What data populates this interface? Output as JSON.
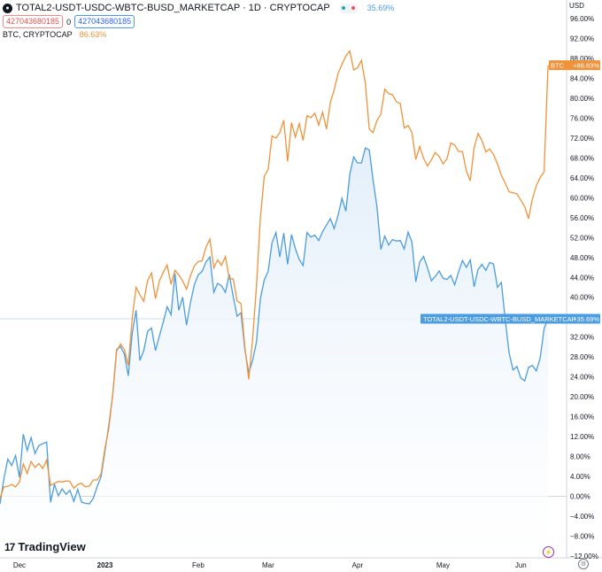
{
  "header": {
    "symbol_icon": "tradingview-symbol-icon",
    "title": "TOTAL2-USDT-USDC-WBTC-BUSD_MARKETCAP · 1D · CRYPTOCAP",
    "main_change": "35.69%",
    "input_left": "427043680185",
    "zero": "0",
    "input_right": "427043680185",
    "btc_label": "BTC, CRYPTOCAP",
    "btc_change": "86.63%"
  },
  "brand": {
    "icon": "17",
    "name": "TradingView"
  },
  "colors": {
    "total2": "#4b9ce0",
    "total2_fill": "#e3effa",
    "btc": "#f0923a",
    "grid_zero": "#c9ced8"
  },
  "chart_data": {
    "type": "line",
    "y_unit": "USD",
    "ylim": [
      -12,
      96
    ],
    "y_ticks": [
      "96.00%",
      "92.00%",
      "88.00%",
      "84.00%",
      "80.00%",
      "76.00%",
      "72.00%",
      "68.00%",
      "64.00%",
      "60.00%",
      "56.00%",
      "52.00%",
      "48.00%",
      "44.00%",
      "40.00%",
      "36.00%",
      "32.00%",
      "28.00%",
      "24.00%",
      "20.00%",
      "16.00%",
      "12.00%",
      "8.00%",
      "4.00%",
      "0.00%",
      "−4.00%",
      "−8.00%",
      "−12.00%"
    ],
    "x_ticks": [
      "Dec",
      "2023",
      "Feb",
      "Mar",
      "Apr",
      "May",
      "Jun"
    ],
    "x_tick_index": [
      5,
      27,
      51,
      69,
      92,
      114,
      134
    ],
    "series": [
      {
        "name": "TOTAL2-USDT-USDC-WBTC-BUSD_MARKETCAP",
        "last_label": "+35.69%",
        "area": true,
        "values": [
          -1.5,
          3.5,
          7.5,
          6.2,
          8.2,
          3.8,
          12.5,
          9.2,
          11.8,
          8.6,
          10.2,
          10.6,
          10.9,
          -1.2,
          2.4,
          0.1,
          1.5,
          0.4,
          1.2,
          -1.0,
          1.4,
          -1.2,
          -1.4,
          -1.5,
          -0.4,
          2.0,
          3.9,
          9.0,
          14.3,
          20.4,
          29.5,
          30.1,
          28.6,
          24.2,
          32.7,
          37.4,
          27.3,
          29.3,
          33.2,
          33.8,
          29.3,
          32.2,
          35.0,
          38.1,
          36.5,
          44.8,
          37.4,
          40.0,
          34.4,
          38.9,
          42.5,
          44.5,
          45.2,
          47.1,
          48.1,
          41.0,
          42.8,
          42.3,
          41.0,
          44.6,
          40.2,
          36.2,
          36.9,
          29.5,
          24.8,
          27.4,
          31.0,
          39.7,
          43.5,
          45.2,
          51.0,
          53.0,
          48.1,
          52.9,
          46.6,
          52.6,
          49.8,
          47.6,
          46.4,
          53.0,
          52.1,
          52.5,
          51.4,
          53.2,
          54.5,
          55.8,
          53.8,
          56.5,
          59.9,
          57.3,
          64.7,
          68.2,
          67.0,
          67.0,
          70.0,
          69.6,
          63.6,
          58.2,
          49.6,
          52.3,
          50.5,
          51.6,
          51.3,
          51.4,
          49.7,
          53.1,
          51.1,
          43.1,
          47.1,
          48.2,
          45.9,
          43.3,
          44.2,
          45.3,
          43.8,
          43.6,
          44.4,
          42.5,
          45.1,
          47.4,
          46.0,
          47.5,
          42.1,
          45.6,
          46.6,
          45.4,
          47.0,
          46.7,
          42.0,
          43.0,
          35.5,
          28.8,
          25.4,
          26.1,
          23.8,
          23.2,
          25.9,
          26.3,
          25.2,
          27.8,
          33.7,
          35.69
        ]
      },
      {
        "name": "BTC",
        "last_label": "+86.63%",
        "area": false,
        "values": [
          -0.4,
          1.9,
          2.0,
          2.4,
          1.9,
          2.9,
          6.5,
          4.6,
          7.0,
          5.8,
          6.6,
          5.6,
          7.3,
          2.2,
          2.6,
          3.0,
          2.9,
          3.1,
          3.0,
          1.6,
          2.4,
          2.6,
          1.9,
          2.1,
          3.3,
          3.3,
          4.5,
          9.6,
          13.7,
          20.4,
          29.2,
          30.6,
          29.5,
          26.3,
          35.7,
          42.0,
          40.5,
          39.2,
          43.4,
          44.9,
          39.7,
          43.3,
          45.0,
          46.5,
          42.6,
          45.4,
          44.5,
          43.3,
          41.6,
          44.3,
          46.3,
          47.2,
          47.3,
          50.1,
          51.7,
          45.9,
          47.5,
          46.4,
          48.2,
          43.7,
          43.7,
          39.3,
          38.7,
          30.0,
          23.5,
          31.8,
          42.2,
          56.0,
          64.3,
          65.7,
          72.4,
          72.0,
          73.1,
          75.6,
          67.3,
          75.1,
          72.2,
          74.9,
          71.5,
          76.5,
          76.1,
          77.0,
          74.6,
          77.2,
          73.8,
          79.2,
          81.7,
          85.0,
          86.8,
          88.5,
          89.5,
          85.7,
          86.1,
          87.6,
          83.0,
          73.8,
          73.1,
          75.5,
          76.8,
          81.8,
          80.9,
          80.7,
          79.3,
          78.9,
          74.0,
          74.5,
          73.1,
          67.7,
          70.3,
          67.9,
          66.4,
          67.6,
          69.1,
          68.3,
          66.8,
          67.8,
          71.0,
          70.6,
          69.3,
          69.3,
          65.4,
          63.4,
          70.1,
          72.9,
          71.5,
          69.2,
          69.8,
          68.7,
          66.8,
          64.5,
          62.9,
          61.2,
          61.0,
          60.8,
          59.5,
          58.2,
          55.8,
          59.8,
          62.4,
          64.1,
          65.2,
          86.5,
          86.63
        ]
      }
    ]
  }
}
